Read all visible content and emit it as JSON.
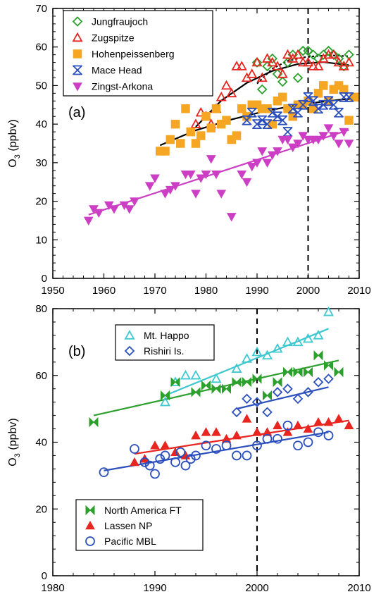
{
  "chart_data": [
    {
      "type": "scatter",
      "panel_label": "(a)",
      "ylabel": "O",
      "ylabel_sub": "3",
      "ylabel_unit": " (ppbv)",
      "xlim": [
        1950,
        2010
      ],
      "ylim": [
        0,
        70
      ],
      "xticks": [
        "1950",
        "1960",
        "1970",
        "1980",
        "1990",
        "2000",
        "2010"
      ],
      "yticks": [
        "0",
        "10",
        "20",
        "30",
        "40",
        "50",
        "60",
        "70"
      ],
      "vline": 2000,
      "legend_position": "top-left",
      "series": [
        {
          "name": "Jungfraujoch",
          "marker": "diamond",
          "color": "#2ca02c",
          "x": [
            1990,
            1991,
            1992,
            1993,
            1994,
            1995,
            1996,
            1997,
            1998,
            1999,
            2000,
            2001,
            2002,
            2003,
            2004,
            2005,
            2006,
            2007,
            2008
          ],
          "y": [
            56,
            49,
            55,
            57,
            53,
            51,
            56,
            58,
            52,
            59,
            59,
            58,
            57,
            58,
            59,
            58,
            57,
            55,
            58
          ]
        },
        {
          "name": "Zugspitze",
          "marker": "triangle-up",
          "color": "#e8251f",
          "x": [
            1978,
            1979,
            1980,
            1981,
            1982,
            1983,
            1984,
            1985,
            1986,
            1987,
            1988,
            1989,
            1990,
            1991,
            1992,
            1993,
            1994,
            1995,
            1996,
            1997,
            1998,
            1999,
            2000,
            2001,
            2002,
            2003,
            2004,
            2005,
            2006,
            2007,
            2008
          ],
          "y": [
            40,
            43,
            42,
            40,
            44,
            47,
            50,
            48,
            55,
            55,
            52,
            53,
            56,
            52,
            57,
            56,
            55,
            53,
            58,
            57,
            58,
            56,
            56,
            55,
            55,
            57,
            58,
            58,
            56,
            55,
            56
          ]
        },
        {
          "name": "Hohenpeissenberg",
          "marker": "square",
          "color": "#f5a623",
          "x": [
            1971,
            1972,
            1973,
            1974,
            1975,
            1976,
            1977,
            1978,
            1979,
            1980,
            1981,
            1982,
            1983,
            1984,
            1985,
            1986,
            1987,
            1988,
            1989,
            1990,
            1991,
            1992,
            1993,
            1994,
            1995,
            1996,
            1997,
            1998,
            1999,
            2000,
            2001,
            2002,
            2003,
            2004,
            2005,
            2006,
            2007,
            2008,
            2009
          ],
          "y": [
            33,
            33,
            36,
            40,
            35,
            44,
            38,
            35,
            37,
            42,
            39,
            44,
            40,
            41,
            36,
            37,
            44,
            42,
            45,
            45,
            44,
            44,
            40,
            46,
            47,
            44,
            42,
            45,
            45,
            46,
            44,
            48,
            50,
            46,
            49,
            50,
            49,
            41,
            47
          ]
        },
        {
          "name": "Mace Head",
          "marker": "hourglass",
          "color": "#2b4fbd",
          "x": [
            1988,
            1989,
            1990,
            1991,
            1992,
            1993,
            1994,
            1995,
            1996,
            1997,
            1998,
            1999,
            2000,
            2001,
            2002,
            2003,
            2004,
            2005,
            2006,
            2007,
            2008
          ],
          "y": [
            41,
            43,
            40,
            41,
            40,
            43,
            42,
            41,
            38,
            44,
            43,
            45,
            47,
            46,
            44,
            45,
            46,
            45,
            43,
            47,
            47
          ]
        },
        {
          "name": "Zingst-Arkona",
          "marker": "triangle-down",
          "color": "#cc3fc4",
          "x": [
            1957,
            1958,
            1959,
            1961,
            1962,
            1964,
            1965,
            1966,
            1969,
            1970,
            1972,
            1973,
            1974,
            1976,
            1977,
            1978,
            1979,
            1980,
            1981,
            1982,
            1983,
            1985,
            1987,
            1988,
            1989,
            1990,
            1991,
            1992,
            1993,
            1994,
            1995,
            1996,
            1997,
            1998,
            1999,
            2000,
            2001,
            2002,
            2003,
            2004,
            2005,
            2006,
            2007,
            2008
          ],
          "y": [
            15,
            18,
            17,
            19,
            18,
            19,
            18,
            20,
            24,
            26,
            22,
            23,
            24,
            27,
            27,
            22,
            26,
            27,
            31,
            27,
            22,
            16,
            27,
            25,
            29,
            30,
            33,
            30,
            32,
            33,
            36,
            36,
            34,
            35,
            37,
            36,
            36,
            36,
            37,
            39,
            37,
            35,
            38,
            35
          ]
        }
      ],
      "fits": [
        {
          "color": "#000000",
          "dashed": true,
          "x": [
            1990,
            1993,
            1996,
            1999,
            2002,
            2005,
            2008
          ],
          "y": [
            50.5,
            54.4,
            56.4,
            57.3,
            57.7,
            57.8,
            57.6
          ]
        },
        {
          "color": "#000000",
          "dashed": false,
          "x": [
            1978,
            1983,
            1988,
            1993,
            1998,
            2003,
            2008
          ],
          "y": [
            39.3,
            46.1,
            50.7,
            53.8,
            55.6,
            56.1,
            55.3
          ]
        },
        {
          "color": "#000000",
          "dashed": false,
          "x": [
            1971,
            1978,
            1985,
            1992,
            1999,
            2006,
            2009
          ],
          "y": [
            34.5,
            38.4,
            41.2,
            43.5,
            45.2,
            46.3,
            46.6
          ]
        },
        {
          "color": "#cc3fc4",
          "dashed": false,
          "x": [
            1957,
            2008
          ],
          "y": [
            16.5,
            38.5
          ]
        }
      ]
    },
    {
      "type": "scatter",
      "panel_label": "(b)",
      "ylabel": "O",
      "ylabel_sub": "3",
      "ylabel_unit": " (ppbv)",
      "xlim": [
        1980,
        2010
      ],
      "ylim": [
        0,
        80
      ],
      "xticks": [
        "1980",
        "1990",
        "2000",
        "2010"
      ],
      "yticks": [
        "0",
        "20",
        "40",
        "60",
        "80"
      ],
      "vline": 2000,
      "legend_position": "top-center and bottom-left",
      "series": [
        {
          "name": "Mt. Happo",
          "marker": "triangle-up-open",
          "color": "#3ec8d0",
          "legend_group": "top",
          "x": [
            1991,
            1992,
            1993,
            1994,
            1996,
            1998,
            1999,
            2000,
            2001,
            2002,
            2003,
            2004,
            2005,
            2006,
            2007
          ],
          "y": [
            52,
            58,
            60,
            60,
            59,
            62,
            65,
            67,
            66,
            68,
            70,
            70,
            71,
            72,
            79
          ]
        },
        {
          "name": "Rishiri Is.",
          "marker": "diamond",
          "color": "#2b4fbd",
          "legend_group": "top",
          "x": [
            1998,
            1999,
            2000,
            2001,
            2002,
            2003,
            2004,
            2005,
            2006,
            2007
          ],
          "y": [
            49,
            53,
            52,
            49,
            55,
            56,
            53,
            55,
            58,
            59
          ]
        },
        {
          "name": "North America FT",
          "marker": "bowtie",
          "color": "#2ca02c",
          "legend_group": "bottom",
          "x": [
            1984,
            1991,
            1992,
            1994,
            1995,
            1996,
            1997,
            1998,
            1999,
            2000,
            2001,
            2002,
            2003,
            2004,
            2005,
            2006,
            2007,
            2008
          ],
          "y": [
            46,
            54,
            58,
            55,
            57,
            56,
            56,
            58,
            58,
            59,
            54,
            58,
            61,
            61,
            61,
            66,
            63,
            61
          ]
        },
        {
          "name": "Lassen NP",
          "marker": "triangle-up",
          "color": "#e8251f",
          "legend_group": "bottom",
          "x": [
            1988,
            1989,
            1990,
            1991,
            1992,
            1993,
            1994,
            1995,
            1996,
            1997,
            1998,
            1999,
            2000,
            2001,
            2002,
            2003,
            2004,
            2005,
            2006,
            2007,
            2008,
            2009
          ],
          "y": [
            34,
            35,
            39,
            39,
            37,
            36,
            42,
            43,
            43,
            41,
            42,
            47,
            43,
            43,
            45,
            43,
            45,
            44,
            46,
            46,
            47,
            45
          ]
        },
        {
          "name": "Pacific MBL",
          "marker": "circle-open",
          "color": "#2b4fbd",
          "legend_group": "bottom",
          "x": [
            1985,
            1988,
            1989,
            1989.5,
            1990,
            1990.5,
            1991,
            1992,
            1992.5,
            1993,
            1993.5,
            1994,
            1995,
            1996,
            1997,
            1998,
            1999,
            2000,
            2001,
            2002,
            2003,
            2004,
            2005,
            2006,
            2007
          ],
          "y": [
            31,
            38,
            34,
            33,
            30.5,
            35,
            36,
            34,
            37,
            33,
            35,
            36,
            39,
            38,
            39,
            36,
            36,
            39,
            41,
            41,
            45,
            39,
            40,
            43,
            42
          ]
        }
      ],
      "fits": [
        {
          "color": "#3ec8d0",
          "dashed": false,
          "x": [
            1991,
            2007
          ],
          "y": [
            54,
            74
          ]
        },
        {
          "color": "#2b4fbd",
          "dashed": false,
          "x": [
            1998,
            2007
          ],
          "y": [
            50,
            56.5
          ]
        },
        {
          "color": "#2ca02c",
          "dashed": false,
          "x": [
            1984,
            2008
          ],
          "y": [
            48,
            64.5
          ]
        },
        {
          "color": "#e8251f",
          "dashed": false,
          "x": [
            1988,
            2009
          ],
          "y": [
            36.5,
            46.5
          ]
        },
        {
          "color": "#2b4fbd",
          "dashed": false,
          "x": [
            1985,
            2007
          ],
          "y": [
            31.5,
            43
          ]
        }
      ]
    }
  ]
}
